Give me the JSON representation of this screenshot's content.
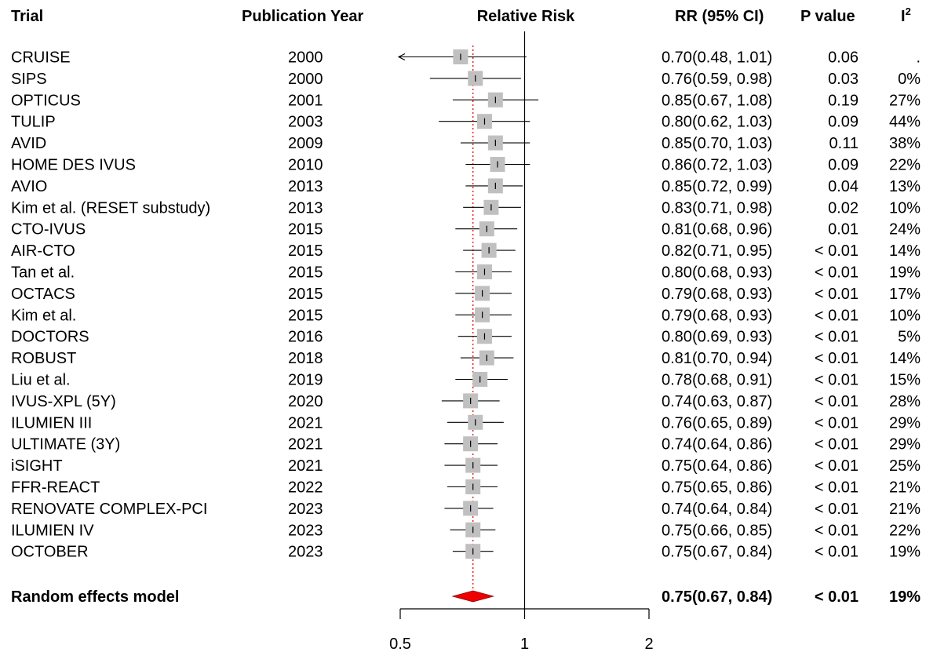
{
  "headers": {
    "trial": "Trial",
    "year": "Publication Year",
    "plot": "Relative Risk",
    "rr": "RR (95% CI)",
    "p": "P value",
    "i2": "I",
    "i2_sup": "2"
  },
  "chart_data": {
    "type": "forest",
    "scale": "log",
    "xlim": [
      0.5,
      2
    ],
    "x_ticks": [
      0.5,
      1,
      2
    ],
    "x_tick_labels": [
      "0.5",
      "1",
      "2"
    ],
    "reference_line": 1,
    "pooled_line": 0.75,
    "marker_color": "#c0c0c0",
    "diamond_color": "#ee0000",
    "pooled_line_color": "#ee0000",
    "rows": [
      {
        "trial": "CRUISE",
        "year": "2000",
        "rr": 0.7,
        "lo": 0.48,
        "hi": 1.01,
        "rr_text": "0.70",
        "ci_text": "(0.48, 1.01)",
        "p": "0.06",
        "i2": "."
      },
      {
        "trial": "SIPS",
        "year": "2000",
        "rr": 0.76,
        "lo": 0.59,
        "hi": 0.98,
        "rr_text": "0.76",
        "ci_text": "(0.59, 0.98)",
        "p": "0.03",
        "i2": "0%"
      },
      {
        "trial": "OPTICUS",
        "year": "2001",
        "rr": 0.85,
        "lo": 0.67,
        "hi": 1.08,
        "rr_text": "0.85",
        "ci_text": "(0.67, 1.08)",
        "p": "0.19",
        "i2": "27%"
      },
      {
        "trial": "TULIP",
        "year": "2003",
        "rr": 0.8,
        "lo": 0.62,
        "hi": 1.03,
        "rr_text": "0.80",
        "ci_text": "(0.62, 1.03)",
        "p": "0.09",
        "i2": "44%"
      },
      {
        "trial": "AVID",
        "year": "2009",
        "rr": 0.85,
        "lo": 0.7,
        "hi": 1.03,
        "rr_text": "0.85",
        "ci_text": "(0.70, 1.03)",
        "p": "0.11",
        "i2": "38%"
      },
      {
        "trial": "HOME DES IVUS",
        "year": "2010",
        "rr": 0.86,
        "lo": 0.72,
        "hi": 1.03,
        "rr_text": "0.86",
        "ci_text": "(0.72, 1.03)",
        "p": "0.09",
        "i2": "22%"
      },
      {
        "trial": "AVIO",
        "year": "2013",
        "rr": 0.85,
        "lo": 0.72,
        "hi": 0.99,
        "rr_text": "0.85",
        "ci_text": "(0.72, 0.99)",
        "p": "0.04",
        "i2": "13%"
      },
      {
        "trial": "Kim et al. (RESET substudy)",
        "year": "2013",
        "rr": 0.83,
        "lo": 0.71,
        "hi": 0.98,
        "rr_text": "0.83",
        "ci_text": "(0.71, 0.98)",
        "p": "0.02",
        "i2": "10%"
      },
      {
        "trial": "CTO-IVUS",
        "year": "2015",
        "rr": 0.81,
        "lo": 0.68,
        "hi": 0.96,
        "rr_text": "0.81",
        "ci_text": "(0.68, 0.96)",
        "p": "0.01",
        "i2": "24%"
      },
      {
        "trial": "AIR-CTO",
        "year": "2015",
        "rr": 0.82,
        "lo": 0.71,
        "hi": 0.95,
        "rr_text": "0.82",
        "ci_text": "(0.71, 0.95)",
        "p": "< 0.01",
        "i2": "14%"
      },
      {
        "trial": "Tan et al.",
        "year": "2015",
        "rr": 0.8,
        "lo": 0.68,
        "hi": 0.93,
        "rr_text": "0.80",
        "ci_text": "(0.68, 0.93)",
        "p": "< 0.01",
        "i2": "19%"
      },
      {
        "trial": "OCTACS",
        "year": "2015",
        "rr": 0.79,
        "lo": 0.68,
        "hi": 0.93,
        "rr_text": "0.79",
        "ci_text": "(0.68, 0.93)",
        "p": "< 0.01",
        "i2": "17%"
      },
      {
        "trial": "Kim et al.",
        "year": "2015",
        "rr": 0.79,
        "lo": 0.68,
        "hi": 0.93,
        "rr_text": "0.79",
        "ci_text": "(0.68, 0.93)",
        "p": "< 0.01",
        "i2": "10%"
      },
      {
        "trial": "DOCTORS",
        "year": "2016",
        "rr": 0.8,
        "lo": 0.69,
        "hi": 0.93,
        "rr_text": "0.80",
        "ci_text": "(0.69, 0.93)",
        "p": "< 0.01",
        "i2": "5%"
      },
      {
        "trial": "ROBUST",
        "year": "2018",
        "rr": 0.81,
        "lo": 0.7,
        "hi": 0.94,
        "rr_text": "0.81",
        "ci_text": "(0.70, 0.94)",
        "p": "< 0.01",
        "i2": "14%"
      },
      {
        "trial": "Liu et al.",
        "year": "2019",
        "rr": 0.78,
        "lo": 0.68,
        "hi": 0.91,
        "rr_text": "0.78",
        "ci_text": "(0.68, 0.91)",
        "p": "< 0.01",
        "i2": "15%"
      },
      {
        "trial": "IVUS-XPL (5Y)",
        "year": "2020",
        "rr": 0.74,
        "lo": 0.63,
        "hi": 0.87,
        "rr_text": "0.74",
        "ci_text": "(0.63, 0.87)",
        "p": "< 0.01",
        "i2": "28%"
      },
      {
        "trial": "ILUMIEN III",
        "year": "2021",
        "rr": 0.76,
        "lo": 0.65,
        "hi": 0.89,
        "rr_text": "0.76",
        "ci_text": "(0.65, 0.89)",
        "p": "< 0.01",
        "i2": "29%"
      },
      {
        "trial": "ULTIMATE (3Y)",
        "year": "2021",
        "rr": 0.74,
        "lo": 0.64,
        "hi": 0.86,
        "rr_text": "0.74",
        "ci_text": "(0.64, 0.86)",
        "p": "< 0.01",
        "i2": "29%"
      },
      {
        "trial": "iSIGHT",
        "year": "2021",
        "rr": 0.75,
        "lo": 0.64,
        "hi": 0.86,
        "rr_text": "0.75",
        "ci_text": "(0.64, 0.86)",
        "p": "< 0.01",
        "i2": "25%"
      },
      {
        "trial": "FFR-REACT",
        "year": "2022",
        "rr": 0.75,
        "lo": 0.65,
        "hi": 0.86,
        "rr_text": "0.75",
        "ci_text": "(0.65, 0.86)",
        "p": "< 0.01",
        "i2": "21%"
      },
      {
        "trial": "RENOVATE COMPLEX-PCI",
        "year": "2023",
        "rr": 0.74,
        "lo": 0.64,
        "hi": 0.84,
        "rr_text": "0.74",
        "ci_text": "(0.64, 0.84)",
        "p": "< 0.01",
        "i2": "21%"
      },
      {
        "trial": "ILUMIEN IV",
        "year": "2023",
        "rr": 0.75,
        "lo": 0.66,
        "hi": 0.85,
        "rr_text": "0.75",
        "ci_text": "(0.66, 0.85)",
        "p": "< 0.01",
        "i2": "22%"
      },
      {
        "trial": "OCTOBER",
        "year": "2023",
        "rr": 0.75,
        "lo": 0.67,
        "hi": 0.84,
        "rr_text": "0.75",
        "ci_text": "(0.67, 0.84)",
        "p": "< 0.01",
        "i2": "19%"
      }
    ],
    "summary": {
      "trial": "Random effects model",
      "rr": 0.75,
      "lo": 0.67,
      "hi": 0.84,
      "rr_text": "0.75",
      "ci_text": "(0.67, 0.84)",
      "p": "< 0.01",
      "i2": "19%"
    }
  }
}
